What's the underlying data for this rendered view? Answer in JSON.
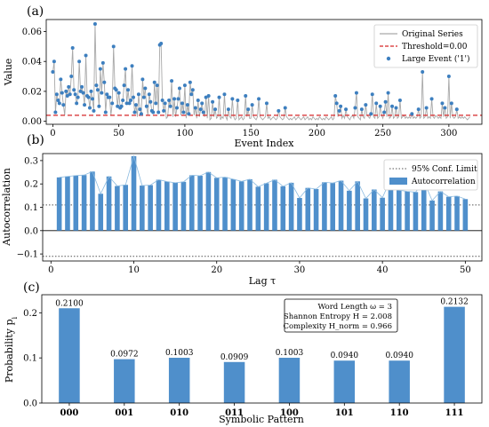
{
  "figure_colors": {
    "blue": "#3d7fbf",
    "bar": "#4f8fcb",
    "gray": "#a9a9a9",
    "red": "#d62728",
    "frame": "#000000"
  },
  "chart_data": [
    {
      "type": "scatter",
      "panel_label": "(a)",
      "xlabel": "Event Index",
      "ylabel": "Value",
      "xlim": [
        -5,
        325
      ],
      "ylim": [
        -0.002,
        0.068
      ],
      "xticks": [
        0,
        50,
        100,
        150,
        200,
        250,
        300
      ],
      "yticks": [
        0.0,
        0.02,
        0.04,
        0.06
      ],
      "ytick_labels": [
        "0.00",
        "0.02",
        "0.04",
        "0.06"
      ],
      "threshold": 0.004,
      "legend_position": "top-right",
      "legend": [
        "Original Series",
        "Threshold=0.00",
        "Large Event ('1')"
      ],
      "series": [
        {
          "name": "Original Series",
          "kind": "line",
          "values": [
            0.033,
            0.04,
            0.006,
            0.018,
            0.014,
            0.012,
            0.028,
            0.019,
            0.011,
            0.004,
            0.02,
            0.017,
            0.023,
            0.018,
            0.03,
            0.049,
            0.021,
            0.018,
            0.012,
            0.016,
            0.04,
            0.02,
            0.023,
            0.019,
            0.011,
            0.044,
            0.017,
            0.016,
            0.009,
            0.02,
            0.015,
            0.007,
            0.065,
            0.024,
            0.021,
            0.01,
            0.035,
            0.019,
            0.039,
            0.026,
            0.006,
            0.018,
            0.016,
            0.016,
            0.004,
            0.012,
            0.05,
            0.022,
            0.021,
            0.01,
            0.019,
            0.009,
            0.01,
            0.014,
            0.024,
            0.035,
            0.012,
            0.021,
            0.012,
            0.014,
            0.037,
            0.016,
            0.006,
            0.011,
            0.003,
            0.018,
            0.008,
            0.005,
            0.028,
            0.016,
            0.022,
            0.01,
            0.004,
            0.018,
            0.013,
            0.007,
            0.006,
            0.026,
            0.012,
            0.024,
            0.006,
            0.051,
            0.052,
            0.014,
            0.007,
            0.012,
            0.002,
            0.003,
            0.014,
            0.01,
            0.027,
            0.003,
            0.015,
            0.003,
            0.009,
            0.015,
            0.022,
            0.004,
            0.012,
            0.006,
            0.024,
            0.002,
            0.011,
            0.005,
            0.026,
            0.018,
            0.021,
            0.004,
            0.009,
            0.002,
            0.014,
            0.003,
            0.008,
            0.012,
            0.006,
            0.003,
            0.016,
            0.002,
            0.017,
            0.001,
            0.002,
            0.013,
            0.003,
            0.008,
            0.002,
            0.003,
            0.016,
            0.001,
            0.003,
            0.002,
            0.018,
            0.003,
            0.001,
            0.008,
            0.003,
            0.002,
            0.015,
            0.003,
            0.001,
            0.002,
            0.014,
            0.001,
            0.002,
            0.003,
            0.001,
            0.002,
            0.017,
            0.003,
            0.008,
            0.002,
            0.002,
            0.011,
            0.003,
            0.002,
            0.001,
            0.003,
            0.015,
            0.003,
            0.002,
            0.001,
            0.002,
            0.003,
            0.012,
            0.002,
            0.003,
            0.001,
            0.002,
            0.003,
            0.002,
            0.001,
            0.002,
            0.007,
            0.003,
            0.002,
            0.001,
            0.002,
            0.009,
            0.003,
            0.002,
            0.001,
            0.002,
            0.001,
            0.002,
            0.003,
            0.001,
            0.002,
            0.003,
            0.002,
            0.001,
            0.002,
            0.003,
            0.001,
            0.002,
            0.003,
            0.001,
            0.002,
            0.001,
            0.003,
            0.002,
            0.001,
            0.002,
            0.001,
            0.003,
            0.002,
            0.001,
            0.002,
            0.001,
            0.003,
            0.002,
            0.001,
            0.002,
            0.003,
            0.001,
            0.002,
            0.017,
            0.012,
            0.003,
            0.007,
            0.01,
            0.002,
            0.004,
            0.002,
            0.008,
            0.003,
            0.002,
            0.001,
            0.003,
            0.004,
            0.002,
            0.009,
            0.019,
            0.003,
            0.002,
            0.001,
            0.008,
            0.003,
            0.002,
            0.011,
            0.004,
            0.003,
            0.002,
            0.005,
            0.018,
            0.003,
            0.002,
            0.012,
            0.002,
            0.003,
            0.01,
            0.004,
            0.002,
            0.006,
            0.013,
            0.003,
            0.019,
            0.002,
            0.003,
            0.01,
            0.002,
            0.003,
            0.009,
            0.002,
            0.003,
            0.014,
            0.002,
            0.003,
            0.004,
            0.002,
            0.003,
            0.002,
            0.003,
            0.002,
            0.005,
            0.002,
            0.003,
            0.002,
            0.003,
            0.008,
            0.002,
            0.003,
            0.033,
            0.002,
            0.003,
            0.009,
            0.002,
            0.003,
            0.002,
            0.015,
            0.003,
            0.002,
            0.004,
            0.003,
            0.002,
            0.003,
            0.002,
            0.012,
            0.003,
            0.009,
            0.002,
            0.003,
            0.03,
            0.002,
            0.012,
            0.003,
            0.002,
            0.003,
            0.008,
            0.002,
            0.003,
            0.002,
            0.003,
            0.002,
            0.003,
            0.002,
            0.001,
            0.002,
            0.003
          ]
        }
      ]
    },
    {
      "type": "bar",
      "panel_label": "(b)",
      "xlabel": "Lag τ",
      "ylabel": "Autocorrelation",
      "xlim": [
        -1,
        52
      ],
      "ylim": [
        -0.13,
        0.33
      ],
      "xticks": [
        0,
        10,
        20,
        30,
        40,
        50
      ],
      "yticks": [
        -0.1,
        0.0,
        0.1,
        0.2,
        0.3
      ],
      "ytick_labels": [
        "−0.1",
        "0.0",
        "0.1",
        "0.2",
        "0.3"
      ],
      "conf_limit": 0.11,
      "legend_position": "top-right",
      "legend": [
        "95% Conf. Limit",
        "Autocorrelation"
      ],
      "series": [
        {
          "name": "Autocorrelation",
          "x": [
            1,
            2,
            3,
            4,
            5,
            6,
            7,
            8,
            9,
            10,
            11,
            12,
            13,
            14,
            15,
            16,
            17,
            18,
            19,
            20,
            21,
            22,
            23,
            24,
            25,
            26,
            27,
            28,
            29,
            30,
            31,
            32,
            33,
            34,
            35,
            36,
            37,
            38,
            39,
            40,
            41,
            42,
            43,
            44,
            45,
            46,
            47,
            48,
            49,
            50
          ],
          "values": [
            0.228,
            0.232,
            0.236,
            0.238,
            0.253,
            0.158,
            0.232,
            0.191,
            0.196,
            0.319,
            0.193,
            0.195,
            0.218,
            0.21,
            0.205,
            0.209,
            0.237,
            0.235,
            0.251,
            0.226,
            0.229,
            0.22,
            0.211,
            0.22,
            0.188,
            0.203,
            0.218,
            0.19,
            0.205,
            0.14,
            0.183,
            0.178,
            0.207,
            0.204,
            0.214,
            0.171,
            0.211,
            0.138,
            0.176,
            0.141,
            0.221,
            0.173,
            0.168,
            0.165,
            0.211,
            0.129,
            0.168,
            0.145,
            0.148,
            0.135
          ]
        }
      ]
    },
    {
      "type": "bar",
      "panel_label": "(c)",
      "xlabel": "Symbolic Pattern",
      "ylabel": "Probability p_i",
      "ylim": [
        0,
        0.24
      ],
      "yticks": [
        0.0,
        0.1,
        0.2
      ],
      "ytick_labels": [
        "0.0",
        "0.1",
        "0.2"
      ],
      "categories": [
        "000",
        "001",
        "010",
        "011",
        "100",
        "101",
        "110",
        "111"
      ],
      "values": [
        0.21,
        0.0972,
        0.1003,
        0.0909,
        0.1003,
        0.094,
        0.094,
        0.2132
      ],
      "value_labels": [
        "0.2100",
        "0.0972",
        "0.1003",
        "0.0909",
        "0.1003",
        "0.0940",
        "0.0940",
        "0.2132"
      ],
      "annotation": {
        "word_length": "Word Length ω = 3",
        "entropy": "Shannon Entropy H = 2.008",
        "complexity": "Complexity H_norm = 0.966"
      }
    }
  ]
}
